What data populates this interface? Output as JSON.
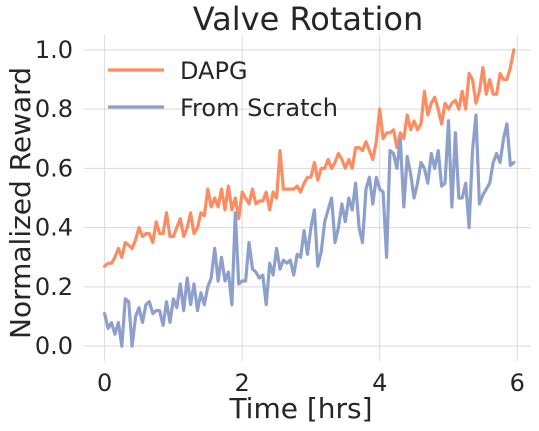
{
  "chart_data": {
    "type": "line",
    "title": "Valve Rotation",
    "xlabel": "Time [hrs]",
    "ylabel": "Normalized Reward",
    "xlim": [
      -0.3,
      6.2
    ],
    "ylim": [
      -0.05,
      1.05
    ],
    "xticks": [
      0,
      2,
      4,
      6
    ],
    "xtick_labels": [
      "0",
      "2",
      "4",
      "6"
    ],
    "yticks": [
      0.0,
      0.2,
      0.4,
      0.6,
      0.8,
      1.0
    ],
    "ytick_labels": [
      "0.0",
      "0.2",
      "0.4",
      "0.6",
      "0.8",
      "1.0"
    ],
    "grid": true,
    "legend_position": "top-left",
    "series": [
      {
        "name": "DAPG",
        "color": "#fc8d62",
        "x": [
          0.0,
          0.05,
          0.1,
          0.15,
          0.2,
          0.25,
          0.3,
          0.35,
          0.4,
          0.45,
          0.5,
          0.55,
          0.6,
          0.65,
          0.7,
          0.75,
          0.8,
          0.85,
          0.9,
          0.95,
          1.0,
          1.05,
          1.1,
          1.15,
          1.2,
          1.25,
          1.3,
          1.35,
          1.4,
          1.45,
          1.5,
          1.55,
          1.6,
          1.65,
          1.7,
          1.75,
          1.8,
          1.85,
          1.9,
          1.95,
          2.0,
          2.05,
          2.1,
          2.15,
          2.2,
          2.25,
          2.3,
          2.35,
          2.4,
          2.45,
          2.5,
          2.55,
          2.6,
          2.65,
          2.7,
          2.75,
          2.8,
          2.85,
          2.9,
          2.95,
          3.0,
          3.05,
          3.1,
          3.15,
          3.2,
          3.25,
          3.3,
          3.35,
          3.4,
          3.45,
          3.5,
          3.55,
          3.6,
          3.65,
          3.7,
          3.75,
          3.8,
          3.85,
          3.9,
          3.95,
          4.0,
          4.05,
          4.1,
          4.15,
          4.2,
          4.25,
          4.3,
          4.35,
          4.4,
          4.45,
          4.5,
          4.55,
          4.6,
          4.65,
          4.7,
          4.75,
          4.8,
          4.85,
          4.9,
          4.95,
          5.0,
          5.05,
          5.1,
          5.15,
          5.2,
          5.25,
          5.3,
          5.35,
          5.4,
          5.45,
          5.5,
          5.55,
          5.6,
          5.65,
          5.7,
          5.75,
          5.8,
          5.85,
          5.9,
          5.95
        ],
        "values": [
          0.27,
          0.28,
          0.28,
          0.3,
          0.33,
          0.3,
          0.35,
          0.34,
          0.33,
          0.36,
          0.4,
          0.37,
          0.38,
          0.38,
          0.35,
          0.42,
          0.38,
          0.38,
          0.45,
          0.37,
          0.37,
          0.4,
          0.43,
          0.37,
          0.4,
          0.45,
          0.38,
          0.4,
          0.45,
          0.44,
          0.53,
          0.47,
          0.5,
          0.47,
          0.53,
          0.46,
          0.54,
          0.46,
          0.5,
          0.43,
          0.52,
          0.5,
          0.48,
          0.53,
          0.48,
          0.49,
          0.49,
          0.52,
          0.46,
          0.52,
          0.5,
          0.66,
          0.53,
          0.53,
          0.53,
          0.53,
          0.54,
          0.52,
          0.55,
          0.57,
          0.57,
          0.62,
          0.56,
          0.6,
          0.6,
          0.63,
          0.6,
          0.62,
          0.65,
          0.63,
          0.6,
          0.63,
          0.6,
          0.67,
          0.67,
          0.66,
          0.69,
          0.66,
          0.63,
          0.69,
          0.8,
          0.7,
          0.72,
          0.72,
          0.73,
          0.67,
          0.72,
          0.7,
          0.78,
          0.73,
          0.76,
          0.73,
          0.75,
          0.86,
          0.78,
          0.82,
          0.84,
          0.8,
          0.75,
          0.82,
          0.8,
          0.82,
          0.83,
          0.8,
          0.86,
          0.8,
          0.92,
          0.9,
          0.82,
          0.86,
          0.94,
          0.85,
          0.9,
          0.85,
          0.85,
          0.92,
          0.9,
          0.9,
          0.94,
          1.0
        ]
      },
      {
        "name": "From Scratch",
        "color": "#8da0cb",
        "x": [
          0.0,
          0.05,
          0.1,
          0.15,
          0.2,
          0.25,
          0.3,
          0.35,
          0.4,
          0.45,
          0.5,
          0.55,
          0.6,
          0.65,
          0.7,
          0.75,
          0.8,
          0.85,
          0.9,
          0.95,
          1.0,
          1.05,
          1.1,
          1.15,
          1.2,
          1.25,
          1.3,
          1.35,
          1.4,
          1.45,
          1.5,
          1.55,
          1.6,
          1.65,
          1.7,
          1.75,
          1.8,
          1.85,
          1.9,
          1.95,
          2.0,
          2.05,
          2.1,
          2.15,
          2.2,
          2.25,
          2.3,
          2.35,
          2.4,
          2.45,
          2.5,
          2.55,
          2.6,
          2.65,
          2.7,
          2.75,
          2.8,
          2.85,
          2.9,
          2.95,
          3.0,
          3.05,
          3.1,
          3.15,
          3.2,
          3.25,
          3.3,
          3.35,
          3.4,
          3.45,
          3.5,
          3.55,
          3.6,
          3.65,
          3.7,
          3.75,
          3.8,
          3.85,
          3.9,
          3.95,
          4.0,
          4.05,
          4.1,
          4.15,
          4.2,
          4.25,
          4.3,
          4.35,
          4.4,
          4.45,
          4.5,
          4.55,
          4.6,
          4.65,
          4.7,
          4.75,
          4.8,
          4.85,
          4.9,
          4.95,
          5.0,
          5.05,
          5.1,
          5.15,
          5.2,
          5.25,
          5.3,
          5.35,
          5.4,
          5.45,
          5.5,
          5.55,
          5.6,
          5.65,
          5.7,
          5.75,
          5.8,
          5.85,
          5.9,
          5.95
        ],
        "values": [
          0.11,
          0.06,
          0.08,
          0.04,
          0.08,
          0.0,
          0.16,
          0.15,
          0.0,
          0.1,
          0.13,
          0.08,
          0.14,
          0.15,
          0.11,
          0.12,
          0.12,
          0.07,
          0.15,
          0.08,
          0.16,
          0.13,
          0.21,
          0.12,
          0.23,
          0.14,
          0.21,
          0.12,
          0.18,
          0.14,
          0.2,
          0.23,
          0.33,
          0.22,
          0.3,
          0.22,
          0.25,
          0.14,
          0.45,
          0.21,
          0.22,
          0.22,
          0.35,
          0.26,
          0.25,
          0.23,
          0.24,
          0.14,
          0.28,
          0.24,
          0.33,
          0.26,
          0.29,
          0.28,
          0.29,
          0.24,
          0.31,
          0.3,
          0.39,
          0.31,
          0.4,
          0.46,
          0.27,
          0.32,
          0.42,
          0.46,
          0.5,
          0.35,
          0.4,
          0.48,
          0.42,
          0.5,
          0.46,
          0.55,
          0.4,
          0.35,
          0.53,
          0.57,
          0.48,
          0.57,
          0.53,
          0.52,
          0.3,
          0.66,
          0.65,
          0.6,
          0.7,
          0.47,
          0.64,
          0.58,
          0.5,
          0.55,
          0.62,
          0.6,
          0.55,
          0.65,
          0.6,
          0.66,
          0.54,
          0.55,
          0.76,
          0.47,
          0.72,
          0.5,
          0.5,
          0.55,
          0.4,
          0.66,
          0.78,
          0.48,
          0.51,
          0.53,
          0.55,
          0.62,
          0.65,
          0.62,
          0.7,
          0.75,
          0.61,
          0.62
        ]
      }
    ]
  }
}
